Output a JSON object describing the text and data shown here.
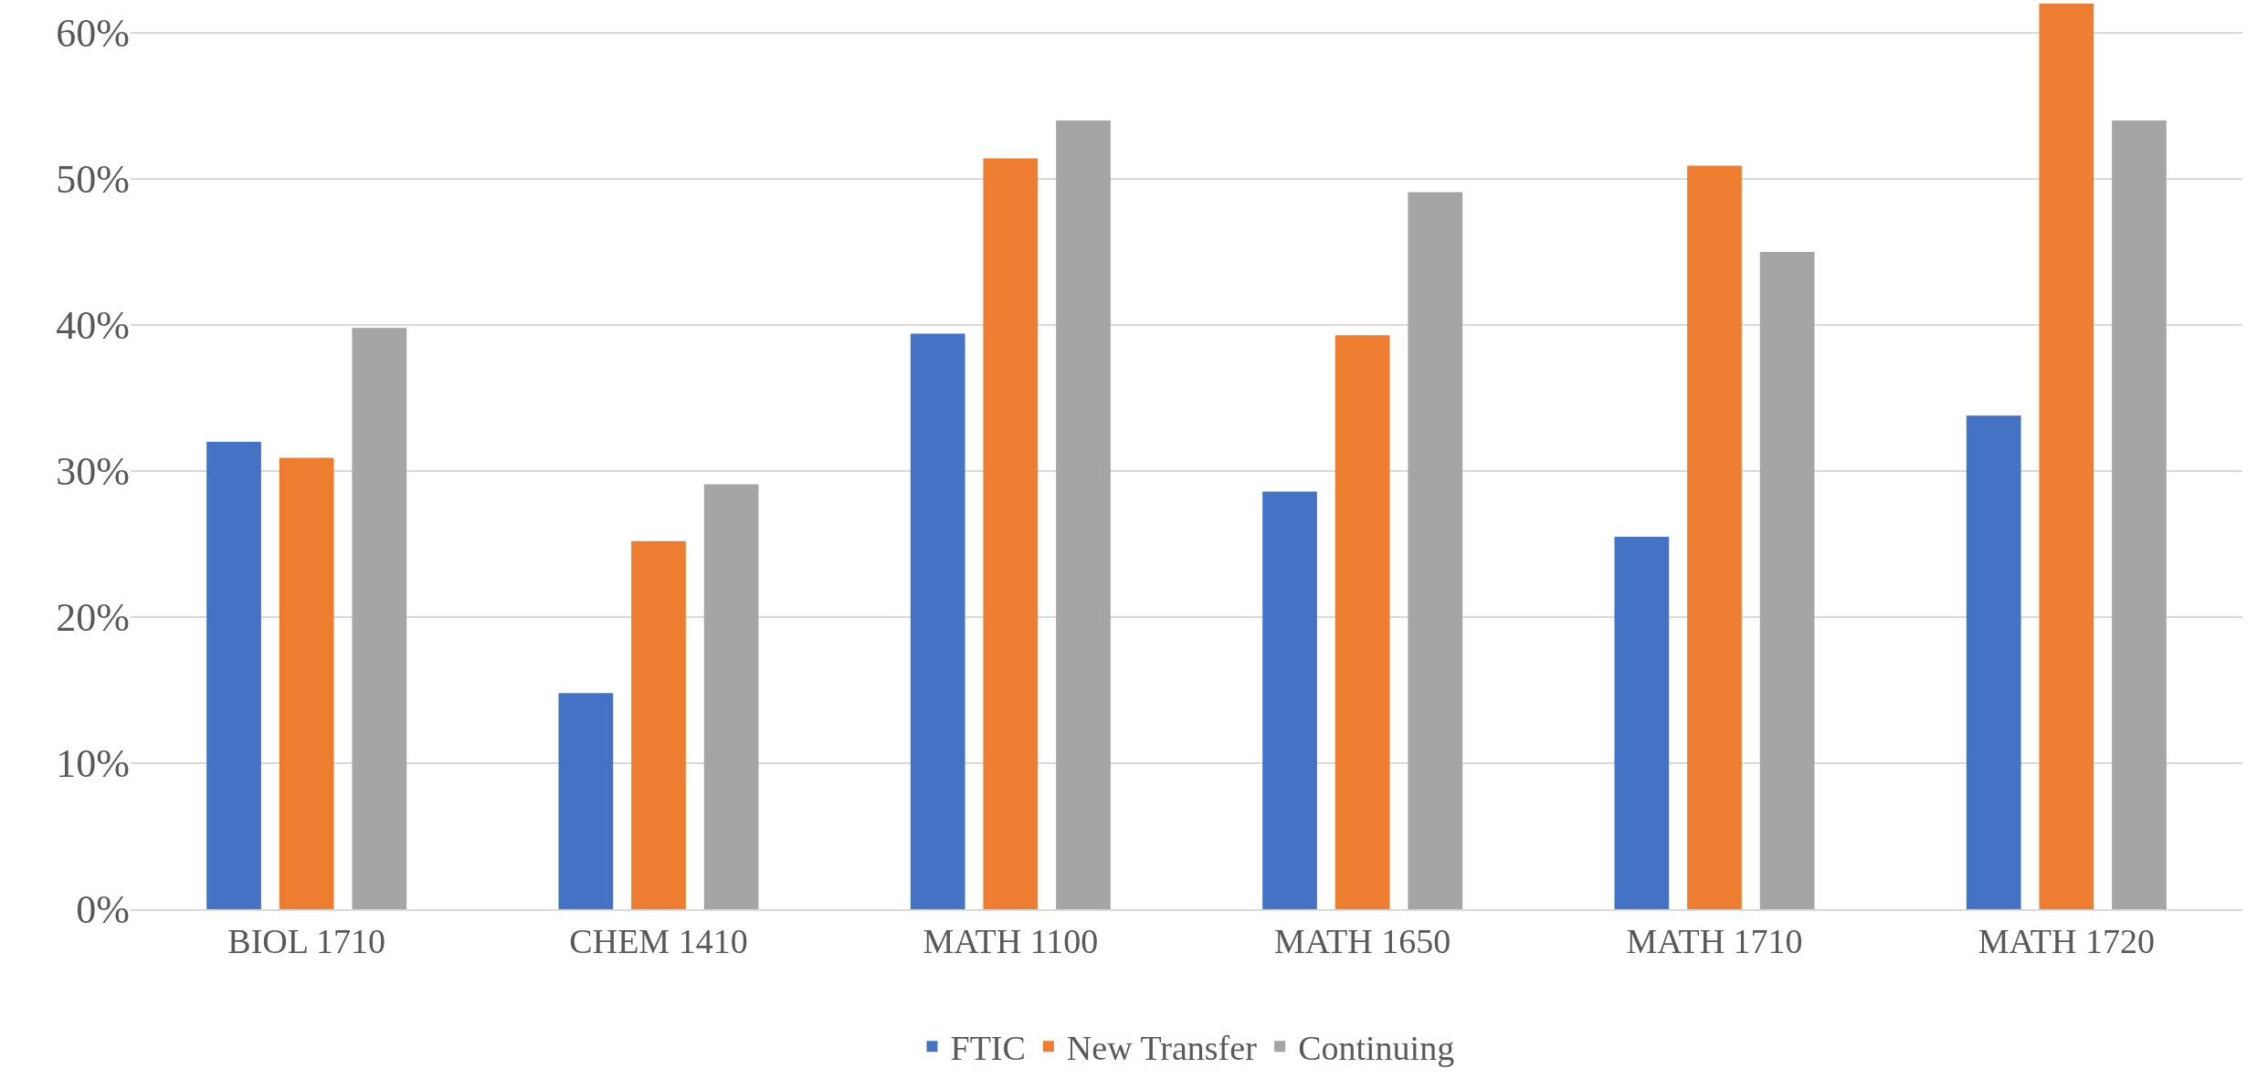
{
  "chart_data": {
    "type": "bar",
    "categories": [
      "BIOL 1710",
      "CHEM 1410",
      "MATH 1100",
      "MATH 1650",
      "MATH 1710",
      "MATH 1720"
    ],
    "series": [
      {
        "name": "FTIC",
        "color": "#4472c4",
        "values": [
          32.0,
          14.8,
          39.4,
          28.6,
          25.5,
          33.8
        ]
      },
      {
        "name": "New Transfer",
        "color": "#ed7d31",
        "values": [
          30.9,
          25.2,
          51.4,
          39.3,
          50.9,
          62
        ]
      },
      {
        "name": "Continuing",
        "color": "#a5a5a5",
        "values": [
          39.8,
          29.1,
          54.0,
          49.1,
          45.0,
          54.0
        ]
      }
    ],
    "ylim": [
      0,
      62
    ],
    "yticks": [
      {
        "value": 0,
        "label": "0%"
      },
      {
        "value": 10,
        "label": "10%"
      },
      {
        "value": 20,
        "label": "20%"
      },
      {
        "value": 30,
        "label": "30%"
      },
      {
        "value": 40,
        "label": "40%"
      },
      {
        "value": 50,
        "label": "50%"
      },
      {
        "value": 60,
        "label": "60%"
      }
    ],
    "grid": "y",
    "legend": "bottom"
  }
}
